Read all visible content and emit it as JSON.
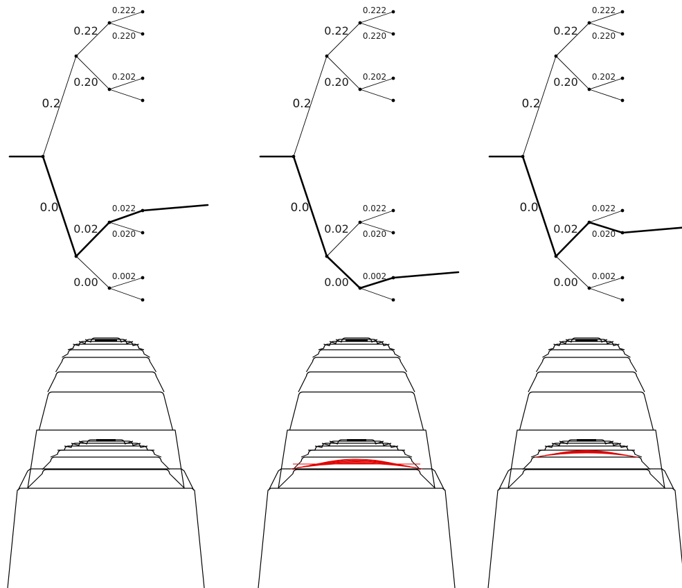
{
  "colors": {
    "ink": "#000000",
    "highlight": "#e00000"
  },
  "panels": [
    {
      "id": "left",
      "highlight_path": [
        "0.0",
        "0.02",
        "0.022"
      ],
      "red_region": "none"
    },
    {
      "id": "middle",
      "highlight_path": [
        "0.0",
        "0.00",
        "0.002"
      ],
      "red_region": "wide"
    },
    {
      "id": "right",
      "highlight_path": [
        "0.0",
        "0.02",
        "0.020"
      ],
      "red_region": "narrow"
    }
  ],
  "tree": {
    "level1": [
      "0.2",
      "0.0"
    ],
    "level2": [
      "0.22",
      "0.20",
      "0.02",
      "0.00"
    ],
    "level3": [
      "0.222",
      "0.220",
      "0.202",
      "0.022",
      "0.020",
      "0.002"
    ]
  }
}
